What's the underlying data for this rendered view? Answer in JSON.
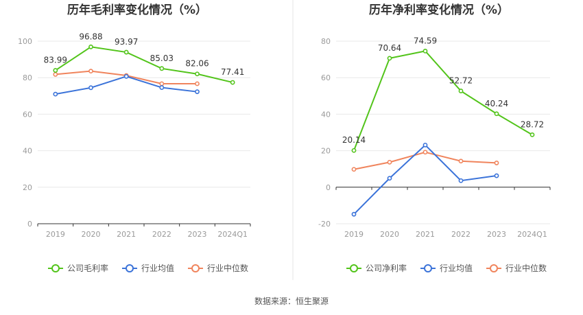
{
  "source": "数据来源：恒生聚源",
  "colors": {
    "company": "#52c41a",
    "avg": "#3b73d9",
    "median": "#f0845c",
    "grid": "#e8e8e8",
    "axis": "#333333"
  },
  "chart_data": [
    {
      "type": "line",
      "title": "历年毛利率变化情况（%）",
      "categories": [
        "2019",
        "2020",
        "2021",
        "2022",
        "2023",
        "2024Q1"
      ],
      "ylim": [
        0,
        100
      ],
      "yticks": [
        "0",
        "20",
        "40",
        "60",
        "80",
        "100"
      ],
      "grid": true,
      "legend_position": "bottom",
      "series": [
        {
          "name": "公司毛利率",
          "values": [
            83.99,
            96.88,
            93.97,
            85.03,
            82.06,
            77.41
          ],
          "labels": [
            "83.99",
            "96.88",
            "93.97",
            "85.03",
            "82.06",
            "77.41"
          ]
        },
        {
          "name": "行业均值",
          "values": [
            71.0,
            74.5,
            80.7,
            74.6,
            72.3,
            null
          ]
        },
        {
          "name": "行业中位数",
          "values": [
            81.8,
            83.6,
            81.2,
            76.7,
            76.7,
            null
          ]
        }
      ]
    },
    {
      "type": "line",
      "title": "历年净利率变化情况（%）",
      "categories": [
        "2019",
        "2020",
        "2021",
        "2022",
        "2023",
        "2024Q1"
      ],
      "ylim": [
        -20,
        80
      ],
      "yticks": [
        "-20",
        "0",
        "20",
        "40",
        "60",
        "80"
      ],
      "grid": true,
      "legend_position": "bottom",
      "series": [
        {
          "name": "公司净利率",
          "values": [
            20.14,
            70.64,
            74.59,
            52.72,
            40.24,
            28.72
          ],
          "labels": [
            "20.14",
            "70.64",
            "74.59",
            "52.72",
            "40.24",
            "28.72"
          ]
        },
        {
          "name": "行业均值",
          "values": [
            -14.8,
            4.9,
            23.1,
            3.6,
            6.3,
            null
          ]
        },
        {
          "name": "行业中位数",
          "values": [
            9.8,
            13.7,
            19.2,
            14.3,
            13.3,
            null
          ]
        }
      ]
    }
  ]
}
